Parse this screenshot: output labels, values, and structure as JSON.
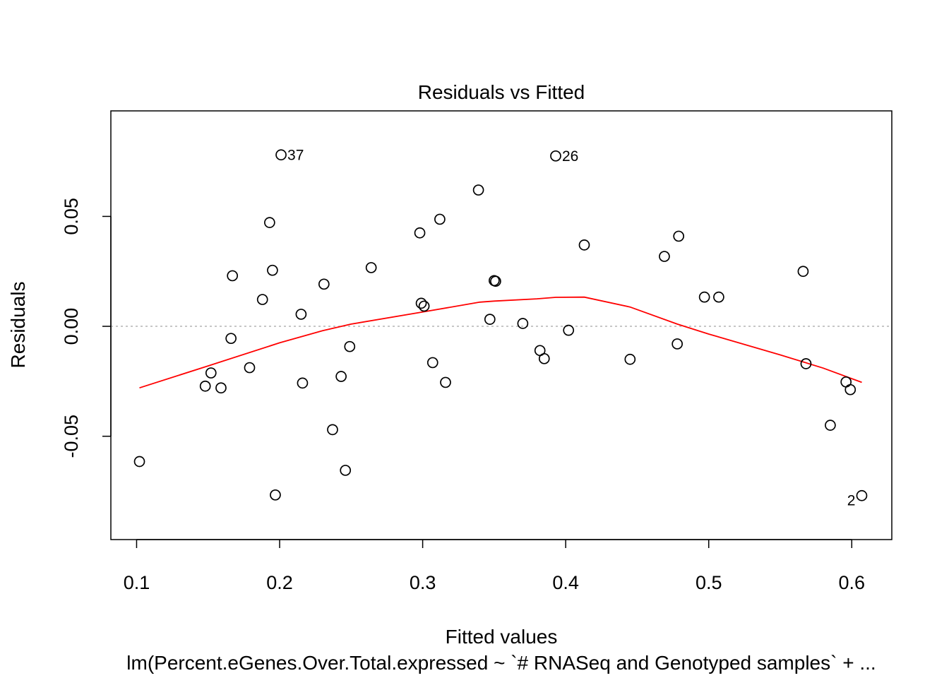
{
  "chart_data": {
    "type": "scatter",
    "title": "Residuals vs Fitted",
    "xlabel": "Fitted values",
    "ylabel": "Residuals",
    "subtitle": "lm(Percent.eGenes.Over.Total.expressed ~ `# RNASeq and Genotyped samples` + ...",
    "xlim": [
      0.082,
      0.628
    ],
    "ylim": [
      -0.097,
      0.098
    ],
    "x_ticks": [
      0.1,
      0.2,
      0.3,
      0.4,
      0.5,
      0.6
    ],
    "x_tick_labels": [
      "0.1",
      "0.2",
      "0.3",
      "0.4",
      "0.5",
      "0.6"
    ],
    "y_ticks": [
      -0.05,
      0.0,
      0.05
    ],
    "y_tick_labels": [
      "-0.05",
      "0.00",
      "0.05"
    ],
    "reference_line_y": 0.0,
    "grid": false,
    "colors": {
      "points": "#000000",
      "smooth": "#ff0000",
      "reference": "#b3b3b3"
    },
    "points": [
      {
        "x": 0.102,
        "y": -0.0615
      },
      {
        "x": 0.148,
        "y": -0.0272
      },
      {
        "x": 0.152,
        "y": -0.0212
      },
      {
        "x": 0.159,
        "y": -0.028
      },
      {
        "x": 0.166,
        "y": -0.0055
      },
      {
        "x": 0.167,
        "y": 0.023
      },
      {
        "x": 0.179,
        "y": -0.0188
      },
      {
        "x": 0.188,
        "y": 0.0122
      },
      {
        "x": 0.193,
        "y": 0.0472
      },
      {
        "x": 0.195,
        "y": 0.0255
      },
      {
        "x": 0.197,
        "y": -0.0767
      },
      {
        "x": 0.201,
        "y": 0.078,
        "label": "37"
      },
      {
        "x": 0.215,
        "y": 0.0055
      },
      {
        "x": 0.216,
        "y": -0.0258
      },
      {
        "x": 0.231,
        "y": 0.0192
      },
      {
        "x": 0.237,
        "y": -0.047
      },
      {
        "x": 0.243,
        "y": -0.0228
      },
      {
        "x": 0.246,
        "y": -0.0655
      },
      {
        "x": 0.249,
        "y": -0.0092
      },
      {
        "x": 0.264,
        "y": 0.0267
      },
      {
        "x": 0.298,
        "y": 0.0425
      },
      {
        "x": 0.299,
        "y": 0.0105
      },
      {
        "x": 0.301,
        "y": 0.0092
      },
      {
        "x": 0.307,
        "y": -0.0165
      },
      {
        "x": 0.312,
        "y": 0.0487
      },
      {
        "x": 0.316,
        "y": -0.0255
      },
      {
        "x": 0.339,
        "y": 0.062
      },
      {
        "x": 0.347,
        "y": 0.0032
      },
      {
        "x": 0.35,
        "y": 0.0208
      },
      {
        "x": 0.351,
        "y": 0.0205
      },
      {
        "x": 0.37,
        "y": 0.0013
      },
      {
        "x": 0.382,
        "y": -0.011
      },
      {
        "x": 0.385,
        "y": -0.0147
      },
      {
        "x": 0.393,
        "y": 0.0775,
        "label": "26"
      },
      {
        "x": 0.402,
        "y": -0.0018
      },
      {
        "x": 0.413,
        "y": 0.037
      },
      {
        "x": 0.445,
        "y": -0.015
      },
      {
        "x": 0.469,
        "y": 0.0318
      },
      {
        "x": 0.478,
        "y": -0.008
      },
      {
        "x": 0.479,
        "y": 0.041
      },
      {
        "x": 0.497,
        "y": 0.0133
      },
      {
        "x": 0.507,
        "y": 0.0133
      },
      {
        "x": 0.566,
        "y": 0.025
      },
      {
        "x": 0.568,
        "y": -0.017
      },
      {
        "x": 0.585,
        "y": -0.045
      },
      {
        "x": 0.596,
        "y": -0.0253
      },
      {
        "x": 0.599,
        "y": -0.0288
      },
      {
        "x": 0.607,
        "y": -0.077,
        "label": "2"
      }
    ],
    "smooth_line": [
      {
        "x": 0.102,
        "y": -0.028
      },
      {
        "x": 0.15,
        "y": -0.018
      },
      {
        "x": 0.2,
        "y": -0.0075
      },
      {
        "x": 0.23,
        "y": -0.002
      },
      {
        "x": 0.25,
        "y": 0.001
      },
      {
        "x": 0.3,
        "y": 0.0065
      },
      {
        "x": 0.34,
        "y": 0.011
      },
      {
        "x": 0.35,
        "y": 0.0115
      },
      {
        "x": 0.38,
        "y": 0.0125
      },
      {
        "x": 0.393,
        "y": 0.0132
      },
      {
        "x": 0.413,
        "y": 0.0133
      },
      {
        "x": 0.445,
        "y": 0.0088
      },
      {
        "x": 0.478,
        "y": 0.001
      },
      {
        "x": 0.5,
        "y": -0.0035
      },
      {
        "x": 0.55,
        "y": -0.013
      },
      {
        "x": 0.58,
        "y": -0.019
      },
      {
        "x": 0.607,
        "y": -0.0255
      }
    ]
  }
}
